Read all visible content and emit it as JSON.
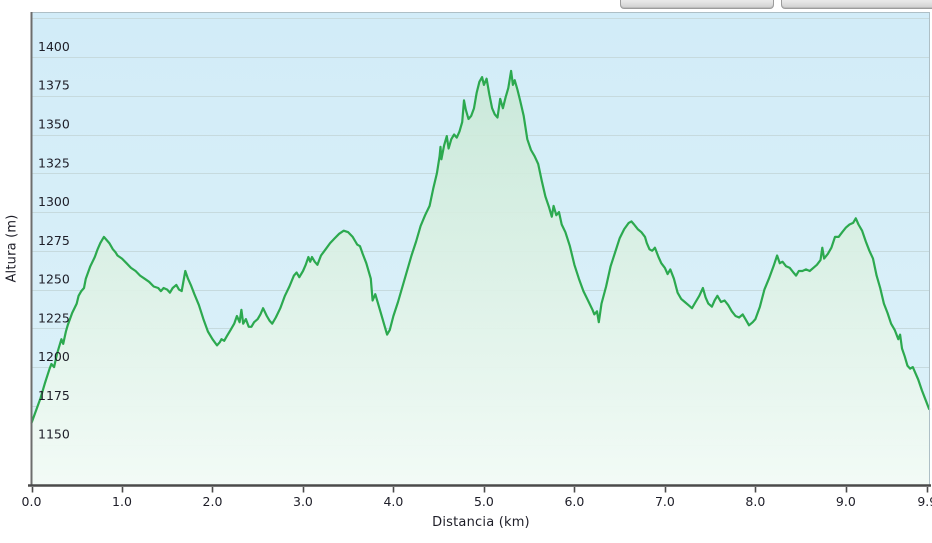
{
  "page": {
    "background": "#ffffff",
    "top_buttons": [
      {
        "label": ""
      },
      {
        "label": ""
      }
    ]
  },
  "chart_data": {
    "type": "area",
    "title": "",
    "xlabel": "Distancia (km)",
    "ylabel": "Altura (m)",
    "xlim": [
      0,
      9.93
    ],
    "ylim": [
      1124,
      1429
    ],
    "grid": true,
    "legend": "none",
    "x_tick_values": [
      0,
      1,
      2,
      3,
      4,
      5,
      6,
      7,
      8,
      9,
      9.9
    ],
    "x_tick_labels": [
      "0.0",
      "1.0",
      "2.0",
      "3.0",
      "4.0",
      "5.0",
      "6.0",
      "7.0",
      "8.0",
      "9.0",
      "9.9"
    ],
    "y_tick_values": [
      1150,
      1175,
      1200,
      1225,
      1250,
      1275,
      1300,
      1325,
      1350,
      1375,
      1400
    ],
    "y_grid_values": [
      1150,
      1175,
      1200,
      1225,
      1250,
      1275,
      1300,
      1325,
      1350,
      1375,
      1400,
      1425
    ],
    "colors": {
      "line": "#2ca94f",
      "area_top": "#c8e8d5",
      "area_bottom": "#f3fbf6",
      "plot_bg_top": "#d2ecf8",
      "plot_bg_bottom": "#dcf1f9",
      "grid": "#c6dade",
      "axis": "#4a4a4a",
      "border_light": "#aebfc6",
      "border_left": "#6d6d6d",
      "text": "#1e1e28"
    },
    "points": [
      [
        0.0,
        1164
      ],
      [
        0.05,
        1172
      ],
      [
        0.1,
        1180
      ],
      [
        0.15,
        1190
      ],
      [
        0.2,
        1199
      ],
      [
        0.22,
        1202
      ],
      [
        0.25,
        1200
      ],
      [
        0.28,
        1208
      ],
      [
        0.3,
        1212
      ],
      [
        0.33,
        1218
      ],
      [
        0.35,
        1215
      ],
      [
        0.38,
        1223
      ],
      [
        0.4,
        1227
      ],
      [
        0.45,
        1235
      ],
      [
        0.5,
        1241
      ],
      [
        0.52,
        1246
      ],
      [
        0.55,
        1249
      ],
      [
        0.58,
        1251
      ],
      [
        0.6,
        1257
      ],
      [
        0.65,
        1265
      ],
      [
        0.7,
        1271
      ],
      [
        0.73,
        1276
      ],
      [
        0.76,
        1280
      ],
      [
        0.8,
        1284
      ],
      [
        0.83,
        1282
      ],
      [
        0.86,
        1280
      ],
      [
        0.9,
        1276
      ],
      [
        0.93,
        1274
      ],
      [
        0.95,
        1272
      ],
      [
        1.0,
        1270
      ],
      [
        1.05,
        1267
      ],
      [
        1.1,
        1264
      ],
      [
        1.15,
        1262
      ],
      [
        1.2,
        1259
      ],
      [
        1.25,
        1257
      ],
      [
        1.3,
        1255
      ],
      [
        1.35,
        1252
      ],
      [
        1.4,
        1251
      ],
      [
        1.43,
        1249
      ],
      [
        1.46,
        1251
      ],
      [
        1.5,
        1250
      ],
      [
        1.53,
        1248
      ],
      [
        1.56,
        1251
      ],
      [
        1.6,
        1253
      ],
      [
        1.63,
        1250
      ],
      [
        1.66,
        1249
      ],
      [
        1.7,
        1262
      ],
      [
        1.73,
        1257
      ],
      [
        1.76,
        1253
      ],
      [
        1.8,
        1247
      ],
      [
        1.85,
        1240
      ],
      [
        1.9,
        1231
      ],
      [
        1.95,
        1223
      ],
      [
        2.0,
        1218
      ],
      [
        2.05,
        1214
      ],
      [
        2.08,
        1216
      ],
      [
        2.1,
        1218
      ],
      [
        2.13,
        1217
      ],
      [
        2.16,
        1220
      ],
      [
        2.2,
        1224
      ],
      [
        2.24,
        1228
      ],
      [
        2.27,
        1233
      ],
      [
        2.3,
        1229
      ],
      [
        2.32,
        1237
      ],
      [
        2.34,
        1228
      ],
      [
        2.37,
        1231
      ],
      [
        2.4,
        1226
      ],
      [
        2.43,
        1226
      ],
      [
        2.46,
        1229
      ],
      [
        2.5,
        1231
      ],
      [
        2.53,
        1234
      ],
      [
        2.56,
        1238
      ],
      [
        2.6,
        1233
      ],
      [
        2.63,
        1230
      ],
      [
        2.66,
        1228
      ],
      [
        2.7,
        1232
      ],
      [
        2.75,
        1238
      ],
      [
        2.8,
        1246
      ],
      [
        2.85,
        1252
      ],
      [
        2.9,
        1259
      ],
      [
        2.93,
        1261
      ],
      [
        2.96,
        1258
      ],
      [
        3.0,
        1262
      ],
      [
        3.03,
        1266
      ],
      [
        3.06,
        1271
      ],
      [
        3.08,
        1268
      ],
      [
        3.1,
        1271
      ],
      [
        3.13,
        1268
      ],
      [
        3.16,
        1266
      ],
      [
        3.2,
        1272
      ],
      [
        3.25,
        1276
      ],
      [
        3.3,
        1280
      ],
      [
        3.35,
        1283
      ],
      [
        3.4,
        1286
      ],
      [
        3.45,
        1288
      ],
      [
        3.5,
        1287
      ],
      [
        3.55,
        1284
      ],
      [
        3.58,
        1281
      ],
      [
        3.6,
        1279
      ],
      [
        3.63,
        1278
      ],
      [
        3.66,
        1273
      ],
      [
        3.7,
        1267
      ],
      [
        3.75,
        1257
      ],
      [
        3.77,
        1243
      ],
      [
        3.8,
        1247
      ],
      [
        3.85,
        1237
      ],
      [
        3.9,
        1227
      ],
      [
        3.93,
        1221
      ],
      [
        3.96,
        1224
      ],
      [
        4.0,
        1233
      ],
      [
        4.05,
        1242
      ],
      [
        4.1,
        1252
      ],
      [
        4.15,
        1262
      ],
      [
        4.2,
        1272
      ],
      [
        4.25,
        1281
      ],
      [
        4.3,
        1291
      ],
      [
        4.35,
        1298
      ],
      [
        4.4,
        1304
      ],
      [
        4.44,
        1315
      ],
      [
        4.48,
        1325
      ],
      [
        4.51,
        1336
      ],
      [
        4.52,
        1342
      ],
      [
        4.53,
        1334
      ],
      [
        4.56,
        1343
      ],
      [
        4.59,
        1349
      ],
      [
        4.61,
        1341
      ],
      [
        4.64,
        1347
      ],
      [
        4.67,
        1350
      ],
      [
        4.7,
        1348
      ],
      [
        4.73,
        1352
      ],
      [
        4.76,
        1358
      ],
      [
        4.78,
        1372
      ],
      [
        4.8,
        1366
      ],
      [
        4.83,
        1360
      ],
      [
        4.86,
        1362
      ],
      [
        4.89,
        1367
      ],
      [
        4.92,
        1377
      ],
      [
        4.95,
        1384
      ],
      [
        4.98,
        1387
      ],
      [
        5.0,
        1382
      ],
      [
        5.03,
        1386
      ],
      [
        5.06,
        1376
      ],
      [
        5.09,
        1367
      ],
      [
        5.12,
        1363
      ],
      [
        5.15,
        1361
      ],
      [
        5.18,
        1373
      ],
      [
        5.21,
        1367
      ],
      [
        5.24,
        1374
      ],
      [
        5.27,
        1380
      ],
      [
        5.3,
        1391
      ],
      [
        5.32,
        1382
      ],
      [
        5.34,
        1385
      ],
      [
        5.37,
        1379
      ],
      [
        5.4,
        1372
      ],
      [
        5.44,
        1362
      ],
      [
        5.48,
        1347
      ],
      [
        5.52,
        1340
      ],
      [
        5.56,
        1336
      ],
      [
        5.6,
        1331
      ],
      [
        5.64,
        1320
      ],
      [
        5.68,
        1310
      ],
      [
        5.72,
        1303
      ],
      [
        5.75,
        1297
      ],
      [
        5.77,
        1304
      ],
      [
        5.8,
        1298
      ],
      [
        5.83,
        1300
      ],
      [
        5.86,
        1292
      ],
      [
        5.9,
        1287
      ],
      [
        5.95,
        1278
      ],
      [
        6.0,
        1266
      ],
      [
        6.05,
        1257
      ],
      [
        6.1,
        1249
      ],
      [
        6.15,
        1243
      ],
      [
        6.2,
        1237
      ],
      [
        6.22,
        1234
      ],
      [
        6.25,
        1236
      ],
      [
        6.27,
        1229
      ],
      [
        6.3,
        1241
      ],
      [
        6.35,
        1252
      ],
      [
        6.4,
        1265
      ],
      [
        6.45,
        1274
      ],
      [
        6.5,
        1283
      ],
      [
        6.55,
        1289
      ],
      [
        6.6,
        1293
      ],
      [
        6.63,
        1294
      ],
      [
        6.66,
        1292
      ],
      [
        6.7,
        1289
      ],
      [
        6.74,
        1287
      ],
      [
        6.78,
        1284
      ],
      [
        6.8,
        1280
      ],
      [
        6.83,
        1276
      ],
      [
        6.86,
        1275
      ],
      [
        6.89,
        1277
      ],
      [
        6.93,
        1271
      ],
      [
        6.96,
        1267
      ],
      [
        7.0,
        1264
      ],
      [
        7.03,
        1260
      ],
      [
        7.06,
        1263
      ],
      [
        7.1,
        1257
      ],
      [
        7.14,
        1248
      ],
      [
        7.18,
        1244
      ],
      [
        7.22,
        1242
      ],
      [
        7.26,
        1240
      ],
      [
        7.3,
        1238
      ],
      [
        7.34,
        1242
      ],
      [
        7.38,
        1246
      ],
      [
        7.42,
        1251
      ],
      [
        7.45,
        1245
      ],
      [
        7.48,
        1241
      ],
      [
        7.52,
        1239
      ],
      [
        7.55,
        1243
      ],
      [
        7.58,
        1246
      ],
      [
        7.62,
        1242
      ],
      [
        7.66,
        1243
      ],
      [
        7.7,
        1240
      ],
      [
        7.74,
        1236
      ],
      [
        7.78,
        1233
      ],
      [
        7.82,
        1232
      ],
      [
        7.86,
        1234
      ],
      [
        7.9,
        1230
      ],
      [
        7.93,
        1227
      ],
      [
        7.97,
        1229
      ],
      [
        8.0,
        1231
      ],
      [
        8.05,
        1239
      ],
      [
        8.1,
        1250
      ],
      [
        8.15,
        1257
      ],
      [
        8.2,
        1265
      ],
      [
        8.24,
        1272
      ],
      [
        8.27,
        1267
      ],
      [
        8.3,
        1268
      ],
      [
        8.34,
        1265
      ],
      [
        8.38,
        1264
      ],
      [
        8.42,
        1261
      ],
      [
        8.45,
        1259
      ],
      [
        8.48,
        1262
      ],
      [
        8.52,
        1262
      ],
      [
        8.56,
        1263
      ],
      [
        8.6,
        1262
      ],
      [
        8.64,
        1264
      ],
      [
        8.68,
        1266
      ],
      [
        8.72,
        1269
      ],
      [
        8.74,
        1277
      ],
      [
        8.76,
        1270
      ],
      [
        8.8,
        1273
      ],
      [
        8.84,
        1277
      ],
      [
        8.88,
        1284
      ],
      [
        8.92,
        1284
      ],
      [
        8.96,
        1287
      ],
      [
        9.0,
        1290
      ],
      [
        9.04,
        1292
      ],
      [
        9.08,
        1293
      ],
      [
        9.11,
        1296
      ],
      [
        9.14,
        1292
      ],
      [
        9.18,
        1288
      ],
      [
        9.22,
        1281
      ],
      [
        9.26,
        1275
      ],
      [
        9.3,
        1270
      ],
      [
        9.34,
        1259
      ],
      [
        9.38,
        1251
      ],
      [
        9.42,
        1241
      ],
      [
        9.46,
        1235
      ],
      [
        9.5,
        1228
      ],
      [
        9.54,
        1224
      ],
      [
        9.58,
        1218
      ],
      [
        9.6,
        1221
      ],
      [
        9.62,
        1212
      ],
      [
        9.65,
        1207
      ],
      [
        9.68,
        1201
      ],
      [
        9.71,
        1199
      ],
      [
        9.74,
        1200
      ],
      [
        9.77,
        1196
      ],
      [
        9.8,
        1192
      ],
      [
        9.84,
        1185
      ],
      [
        9.88,
        1179
      ],
      [
        9.92,
        1173
      ]
    ]
  }
}
